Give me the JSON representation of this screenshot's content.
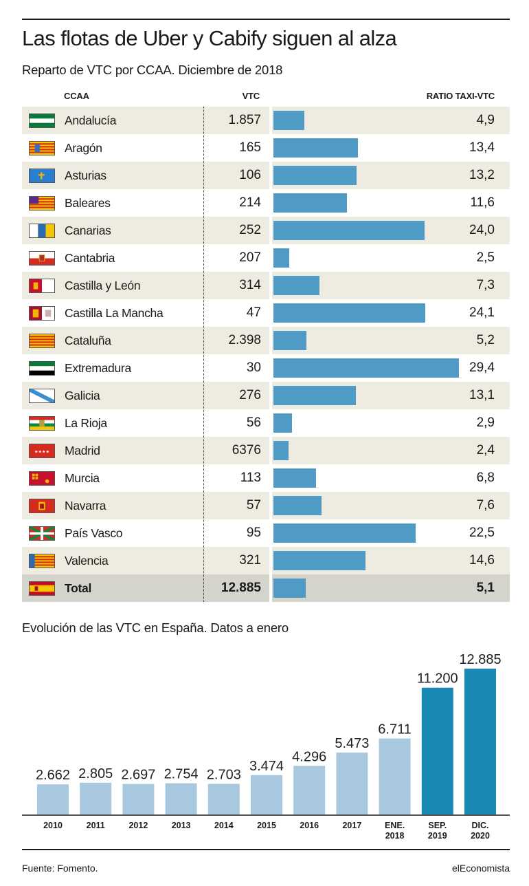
{
  "title": "Las flotas de Uber y Cabify siguen al alza",
  "subtitle": "Reparto de VTC por CCAA. Diciembre de 2018",
  "table": {
    "headers": {
      "ccaa": "CCAA",
      "vtc": "VTC",
      "ratio": "RATIO TAXI-VTC"
    },
    "rows": [
      {
        "name": "Andalucía",
        "vtc": "1.857",
        "ratio": "4,9",
        "ratio_value": 4.9,
        "flag_icon": "andalucia-flag-icon"
      },
      {
        "name": "Aragón",
        "vtc": "165",
        "ratio": "13,4",
        "ratio_value": 13.4,
        "flag_icon": "aragon-flag-icon"
      },
      {
        "name": "Asturias",
        "vtc": "106",
        "ratio": "13,2",
        "ratio_value": 13.2,
        "flag_icon": "asturias-flag-icon"
      },
      {
        "name": "Baleares",
        "vtc": "214",
        "ratio": "11,6",
        "ratio_value": 11.6,
        "flag_icon": "baleares-flag-icon"
      },
      {
        "name": "Canarias",
        "vtc": "252",
        "ratio": "24,0",
        "ratio_value": 24.0,
        "flag_icon": "canarias-flag-icon"
      },
      {
        "name": "Cantabria",
        "vtc": "207",
        "ratio": "2,5",
        "ratio_value": 2.5,
        "flag_icon": "cantabria-flag-icon"
      },
      {
        "name": "Castilla y León",
        "vtc": "314",
        "ratio": "7,3",
        "ratio_value": 7.3,
        "flag_icon": "castilla-y-leon-flag-icon"
      },
      {
        "name": "Castilla La Mancha",
        "vtc": "47",
        "ratio": "24,1",
        "ratio_value": 24.1,
        "flag_icon": "castilla-la-mancha-flag-icon"
      },
      {
        "name": "Cataluña",
        "vtc": "2.398",
        "ratio": "5,2",
        "ratio_value": 5.2,
        "flag_icon": "cataluna-flag-icon"
      },
      {
        "name": "Extremadura",
        "vtc": "30",
        "ratio": "29,4",
        "ratio_value": 29.4,
        "flag_icon": "extremadura-flag-icon"
      },
      {
        "name": "Galicia",
        "vtc": "276",
        "ratio": "13,1",
        "ratio_value": 13.1,
        "flag_icon": "galicia-flag-icon"
      },
      {
        "name": "La Rioja",
        "vtc": "56",
        "ratio": "2,9",
        "ratio_value": 2.9,
        "flag_icon": "la-rioja-flag-icon"
      },
      {
        "name": "Madrid",
        "vtc": "6376",
        "ratio": "2,4",
        "ratio_value": 2.4,
        "flag_icon": "madrid-flag-icon"
      },
      {
        "name": "Murcia",
        "vtc": "113",
        "ratio": "6,8",
        "ratio_value": 6.8,
        "flag_icon": "murcia-flag-icon"
      },
      {
        "name": "Navarra",
        "vtc": "57",
        "ratio": "7,6",
        "ratio_value": 7.6,
        "flag_icon": "navarra-flag-icon"
      },
      {
        "name": "País Vasco",
        "vtc": "95",
        "ratio": "22,5",
        "ratio_value": 22.5,
        "flag_icon": "pais-vasco-flag-icon"
      },
      {
        "name": "Valencia",
        "vtc": "321",
        "ratio": "14,6",
        "ratio_value": 14.6,
        "flag_icon": "valencia-flag-icon"
      },
      {
        "name": "Total",
        "vtc": "12.885",
        "ratio": "5,1",
        "ratio_value": 5.1,
        "flag_icon": "espana-flag-icon",
        "is_total": true
      }
    ]
  },
  "chart2_title": "Evolución de las VTC en España. Datos a enero",
  "chart_data": [
    {
      "type": "bar",
      "orientation": "horizontal",
      "categories": [
        "Andalucía",
        "Aragón",
        "Asturias",
        "Baleares",
        "Canarias",
        "Cantabria",
        "Castilla y León",
        "Castilla La Mancha",
        "Cataluña",
        "Extremadura",
        "Galicia",
        "La Rioja",
        "Madrid",
        "Murcia",
        "Navarra",
        "País Vasco",
        "Valencia",
        "Total"
      ],
      "series": [
        {
          "name": "VTC",
          "values": [
            1857,
            165,
            106,
            214,
            252,
            207,
            314,
            47,
            2398,
            30,
            276,
            56,
            6376,
            113,
            57,
            95,
            321,
            12885
          ]
        },
        {
          "name": "RATIO TAXI-VTC",
          "values": [
            4.9,
            13.4,
            13.2,
            11.6,
            24.0,
            2.5,
            7.3,
            24.1,
            5.2,
            29.4,
            13.1,
            2.9,
            2.4,
            6.8,
            7.6,
            22.5,
            14.6,
            5.1
          ]
        }
      ],
      "title": "Reparto de VTC por CCAA. Diciembre de 2018",
      "bar_color": "#4f9bc6"
    },
    {
      "type": "bar",
      "categories": [
        "2010",
        "2011",
        "2012",
        "2013",
        "2014",
        "2015",
        "2016",
        "2017",
        "ENE. 2018",
        "SEP. 2019",
        "DIC. 2020"
      ],
      "values": [
        2662,
        2805,
        2697,
        2754,
        2703,
        3474,
        4296,
        5473,
        6711,
        11200,
        12885
      ],
      "value_labels": [
        "2.662",
        "2.805",
        "2.697",
        "2.754",
        "2.703",
        "3.474",
        "4.296",
        "5.473",
        "6.711",
        "11.200",
        "12.885"
      ],
      "highlighted": [
        false,
        false,
        false,
        false,
        false,
        false,
        false,
        false,
        false,
        true,
        true
      ],
      "title": "Evolución de las VTC en España. Datos a enero",
      "ylim": [
        0,
        12885
      ],
      "colors": {
        "normal": "#a8c8e0",
        "highlight": "#1a88b4"
      },
      "grid": false
    }
  ],
  "footer": {
    "source": "Fuente: Fomento.",
    "brand": "elEconomista"
  }
}
